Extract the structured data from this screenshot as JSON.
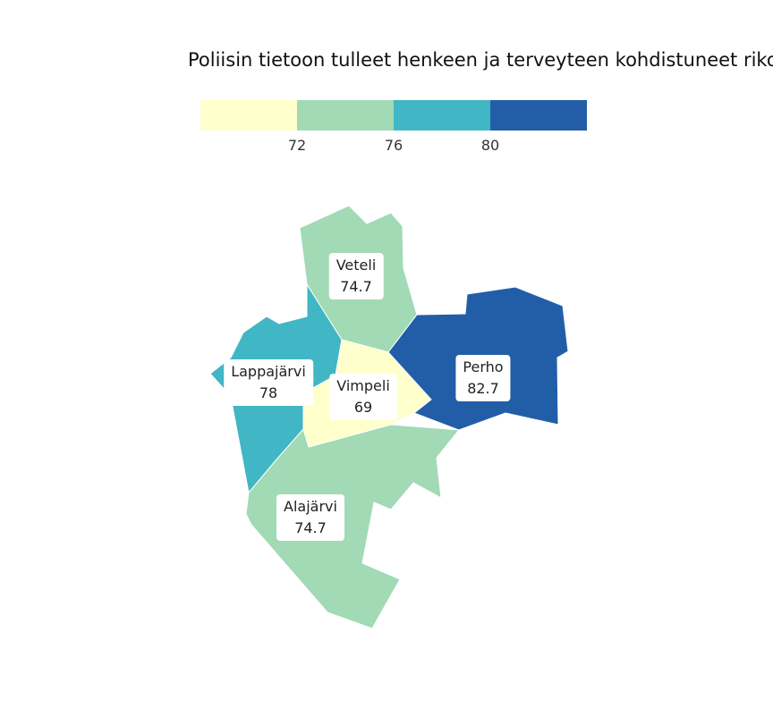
{
  "title": "Poliisin tietoon tulleet henkeen ja terveyteen kohdistuneet riko",
  "legend": {
    "colors": [
      "#ffffcc",
      "#a1dab4",
      "#41b6c4",
      "#225ea8"
    ],
    "ticks": [
      "72",
      "76",
      "80"
    ]
  },
  "regions": {
    "veteli": {
      "name": "Veteli",
      "value": "74.7",
      "color": "#a1dab4"
    },
    "lappajarvi": {
      "name": "Lappajärvi",
      "value": "78",
      "color": "#41b6c4"
    },
    "vimpeli": {
      "name": "Vimpeli",
      "value": "69",
      "color": "#ffffcc"
    },
    "perho": {
      "name": "Perho",
      "value": "82.7",
      "color": "#225ea8"
    },
    "alajarvi": {
      "name": "Alajärvi",
      "value": "74.7",
      "color": "#a1dab4"
    }
  }
}
